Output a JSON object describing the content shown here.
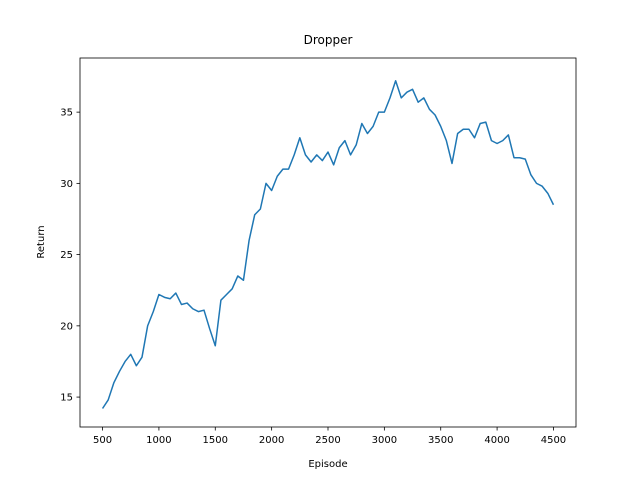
{
  "chart_data": {
    "type": "line",
    "title": "Dropper",
    "x_label": "Episode",
    "y_label": "Return",
    "x": [
      500,
      550,
      600,
      650,
      700,
      750,
      800,
      850,
      900,
      950,
      1000,
      1050,
      1100,
      1150,
      1200,
      1250,
      1300,
      1350,
      1400,
      1450,
      1500,
      1550,
      1600,
      1650,
      1700,
      1750,
      1800,
      1850,
      1900,
      1950,
      2000,
      2050,
      2100,
      2150,
      2200,
      2250,
      2300,
      2350,
      2400,
      2450,
      2500,
      2550,
      2600,
      2650,
      2700,
      2750,
      2800,
      2850,
      2900,
      2950,
      3000,
      3050,
      3100,
      3150,
      3200,
      3250,
      3300,
      3350,
      3400,
      3450,
      3500,
      3550,
      3600,
      3650,
      3700,
      3750,
      3800,
      3850,
      3900,
      3950,
      4000,
      4050,
      4100,
      4150,
      4200,
      4250,
      4300,
      4350,
      4400,
      4450,
      4500
    ],
    "series": [
      {
        "name": "Return",
        "color": "#1f77b4",
        "values": [
          14.2,
          14.8,
          16.0,
          16.8,
          17.5,
          18.0,
          17.2,
          17.8,
          20.0,
          21.0,
          22.2,
          22.0,
          21.9,
          22.3,
          21.5,
          21.6,
          21.2,
          21.0,
          21.1,
          19.8,
          18.6,
          21.8,
          22.2,
          22.6,
          23.5,
          23.2,
          26.0,
          27.8,
          28.2,
          30.0,
          29.5,
          30.5,
          31.0,
          31.0,
          32.0,
          33.2,
          32.0,
          31.5,
          32.0,
          31.6,
          32.2,
          31.3,
          32.5,
          33.0,
          32.0,
          32.7,
          34.2,
          33.5,
          34.0,
          35.0,
          35.0,
          36.0,
          37.2,
          36.0,
          36.4,
          36.6,
          35.7,
          36.0,
          35.2,
          34.8,
          34.0,
          33.0,
          31.4,
          33.5,
          33.8,
          33.8,
          33.2,
          34.2,
          34.3,
          33.0,
          32.8,
          33.0,
          33.4,
          31.8,
          31.8,
          31.7,
          30.6,
          30.0,
          29.8,
          29.3,
          28.5
        ]
      }
    ],
    "xlim": [
      300,
      4700
    ],
    "xticks": [
      500,
      1000,
      1500,
      2000,
      2500,
      3000,
      3500,
      4000,
      4500
    ],
    "ylim": [
      12.9,
      38.8
    ],
    "yticks": [
      15,
      20,
      25,
      30,
      35
    ]
  }
}
